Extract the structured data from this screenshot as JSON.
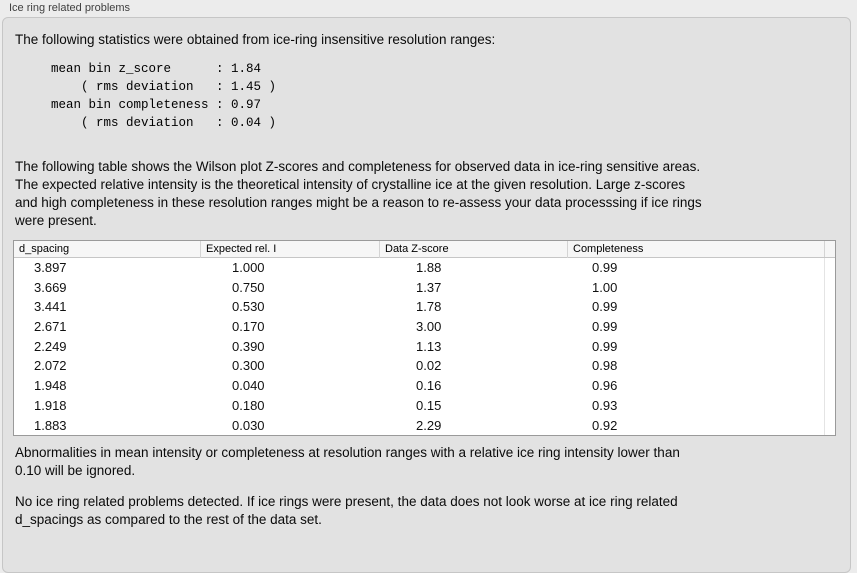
{
  "panel": {
    "title": "Ice ring related problems",
    "background": "#e2e2e2",
    "window_background": "#ececec",
    "border_color": "#c6c6c6"
  },
  "intro": {
    "text": "The following statistics were obtained from ice-ring insensitive resolution ranges:"
  },
  "stats_block": {
    "lines": [
      "mean bin z_score      : 1.84",
      "    ( rms deviation   : 1.45 )",
      "mean bin completeness : 0.97",
      "    ( rms deviation   : 0.04 )"
    ],
    "mean_bin_z_score": "1.84",
    "z_score_rms_deviation": "1.45",
    "mean_bin_completeness": "0.97",
    "completeness_rms_deviation": "0.04"
  },
  "table_intro": {
    "lines": [
      "The following table shows the Wilson plot Z-scores and completeness for observed data in ice-ring sensitive areas.",
      "The expected relative intensity is the theoretical intensity of crystalline ice at the given resolution. Large z-scores",
      "and high completeness in these resolution ranges might be a reason to re-assess your data processsing if ice rings",
      "were present."
    ]
  },
  "table": {
    "columns": [
      "d_spacing",
      "Expected rel. I",
      "Data Z-score",
      "Completeness"
    ],
    "rows": [
      [
        "3.897",
        "1.000",
        "1.88",
        "0.99"
      ],
      [
        "3.669",
        "0.750",
        "1.37",
        "1.00"
      ],
      [
        "3.441",
        "0.530",
        "1.78",
        "0.99"
      ],
      [
        "2.671",
        "0.170",
        "3.00",
        "0.99"
      ],
      [
        "2.249",
        "0.390",
        "1.13",
        "0.99"
      ],
      [
        "2.072",
        "0.300",
        "0.02",
        "0.98"
      ],
      [
        "1.948",
        "0.040",
        "0.16",
        "0.96"
      ],
      [
        "1.918",
        "0.180",
        "0.15",
        "0.93"
      ],
      [
        "1.883",
        "0.030",
        "2.29",
        "0.92"
      ]
    ],
    "header_background": "#f6f6f6",
    "border_color": "#9a9a9a"
  },
  "note_ignore": {
    "lines": [
      "Abnormalities in mean intensity or completeness at resolution ranges with a relative ice ring intensity lower than",
      "0.10 will be ignored."
    ]
  },
  "conclusion": {
    "lines": [
      "No ice ring related problems detected. If ice rings were present, the data does not look worse at ice ring related",
      "d_spacings as compared to the rest of the data set."
    ]
  }
}
